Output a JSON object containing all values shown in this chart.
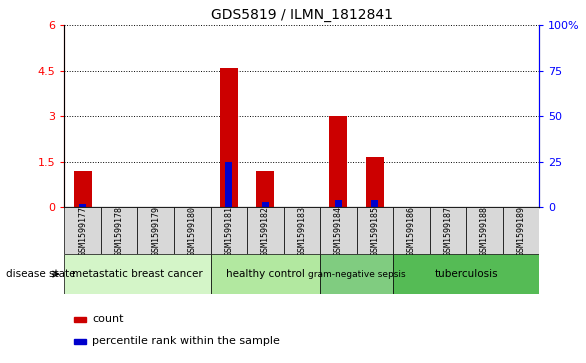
{
  "title": "GDS5819 / ILMN_1812841",
  "samples": [
    "GSM1599177",
    "GSM1599178",
    "GSM1599179",
    "GSM1599180",
    "GSM1599181",
    "GSM1599182",
    "GSM1599183",
    "GSM1599184",
    "GSM1599185",
    "GSM1599186",
    "GSM1599187",
    "GSM1599188",
    "GSM1599189"
  ],
  "count_values": [
    1.2,
    0,
    0,
    0,
    4.6,
    1.2,
    0,
    3.0,
    1.65,
    0,
    0,
    0,
    0
  ],
  "percentile_values": [
    0.1,
    0,
    0,
    0,
    1.5,
    0.15,
    0,
    0.22,
    0.22,
    0,
    0,
    0,
    0
  ],
  "groups": [
    {
      "label": "metastatic breast cancer",
      "start": 0,
      "end": 4
    },
    {
      "label": "healthy control",
      "start": 4,
      "end": 7
    },
    {
      "label": "gram-negative sepsis",
      "start": 7,
      "end": 9
    },
    {
      "label": "tuberculosis",
      "start": 9,
      "end": 13
    }
  ],
  "group_colors": [
    "#d4f5c8",
    "#b2e8a0",
    "#80cc80",
    "#55bb55"
  ],
  "ylim_left": [
    0,
    6
  ],
  "ylim_right": [
    0,
    100
  ],
  "yticks_left": [
    0,
    1.5,
    3.0,
    4.5,
    6.0
  ],
  "ytick_labels_left": [
    "0",
    "1.5",
    "3",
    "4.5",
    "6"
  ],
  "yticks_right_vals": [
    0,
    25,
    50,
    75,
    100
  ],
  "ytick_labels_right": [
    "0",
    "25",
    "50",
    "75",
    "100%"
  ],
  "bar_color": "#cc0000",
  "percentile_color": "#0000cc",
  "sample_bg_color": "#d8d8d8",
  "legend_count": "count",
  "legend_percentile": "percentile rank within the sample",
  "bar_width": 0.5,
  "percentile_bar_width": 0.2
}
